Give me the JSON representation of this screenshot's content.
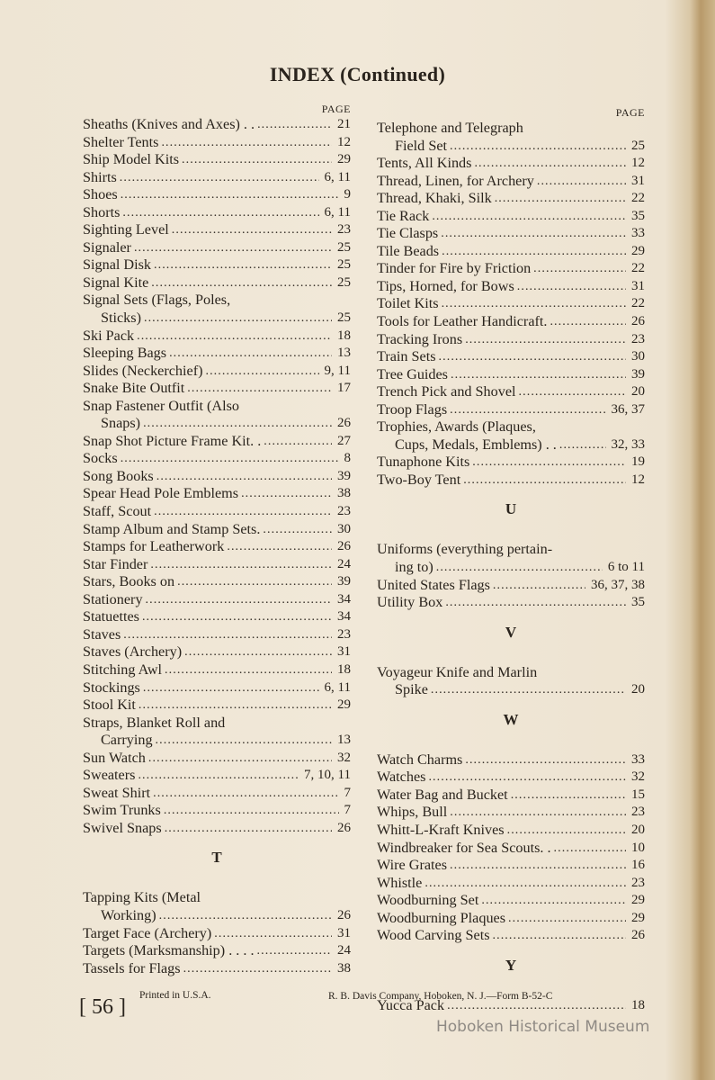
{
  "title": "INDEX (Continued)",
  "page_header": "PAGE",
  "left": [
    {
      "type": "entry",
      "lines": [
        "Sheaths (Knives and Axes) . ."
      ],
      "page": "21"
    },
    {
      "type": "entry",
      "lines": [
        "Shelter Tents"
      ],
      "page": "12"
    },
    {
      "type": "entry",
      "lines": [
        "Ship Model Kits"
      ],
      "page": "29"
    },
    {
      "type": "entry",
      "lines": [
        "Shirts"
      ],
      "page": "6, 11"
    },
    {
      "type": "entry",
      "lines": [
        "Shoes"
      ],
      "page": "9"
    },
    {
      "type": "entry",
      "lines": [
        "Shorts"
      ],
      "page": "6, 11"
    },
    {
      "type": "entry",
      "lines": [
        "Sighting Level"
      ],
      "page": "23"
    },
    {
      "type": "entry",
      "lines": [
        "Signaler"
      ],
      "page": "25"
    },
    {
      "type": "entry",
      "lines": [
        "Signal Disk"
      ],
      "page": "25"
    },
    {
      "type": "entry",
      "lines": [
        "Signal Kite"
      ],
      "page": "25"
    },
    {
      "type": "entry",
      "lines": [
        "Signal Sets (Flags, Poles,",
        "Sticks)"
      ],
      "page": "25"
    },
    {
      "type": "entry",
      "lines": [
        "Ski Pack"
      ],
      "page": "18"
    },
    {
      "type": "entry",
      "lines": [
        "Sleeping Bags"
      ],
      "page": "13"
    },
    {
      "type": "entry",
      "lines": [
        "Slides (Neckerchief)"
      ],
      "page": "9, 11"
    },
    {
      "type": "entry",
      "lines": [
        "Snake Bite Outfit"
      ],
      "page": "17"
    },
    {
      "type": "entry",
      "lines": [
        "Snap Fastener Outfit (Also",
        "Snaps)"
      ],
      "page": "26"
    },
    {
      "type": "entry",
      "lines": [
        "Snap Shot Picture Frame Kit. ."
      ],
      "page": "27"
    },
    {
      "type": "entry",
      "lines": [
        "Socks"
      ],
      "page": "8"
    },
    {
      "type": "entry",
      "lines": [
        "Song Books"
      ],
      "page": "39"
    },
    {
      "type": "entry",
      "lines": [
        "Spear Head Pole Emblems"
      ],
      "page": "38"
    },
    {
      "type": "entry",
      "lines": [
        "Staff, Scout"
      ],
      "page": "23"
    },
    {
      "type": "entry",
      "lines": [
        "Stamp Album and Stamp Sets."
      ],
      "page": "30"
    },
    {
      "type": "entry",
      "lines": [
        "Stamps for Leatherwork"
      ],
      "page": "26"
    },
    {
      "type": "entry",
      "lines": [
        "Star Finder"
      ],
      "page": "24"
    },
    {
      "type": "entry",
      "lines": [
        "Stars, Books on"
      ],
      "page": "39"
    },
    {
      "type": "entry",
      "lines": [
        "Stationery"
      ],
      "page": "34"
    },
    {
      "type": "entry",
      "lines": [
        "Statuettes"
      ],
      "page": "34"
    },
    {
      "type": "entry",
      "lines": [
        "Staves"
      ],
      "page": "23"
    },
    {
      "type": "entry",
      "lines": [
        "Staves (Archery)"
      ],
      "page": "31"
    },
    {
      "type": "entry",
      "lines": [
        "Stitching Awl"
      ],
      "page": "18"
    },
    {
      "type": "entry",
      "lines": [
        "Stockings"
      ],
      "page": "6, 11"
    },
    {
      "type": "entry",
      "lines": [
        "Stool Kit"
      ],
      "page": "29"
    },
    {
      "type": "entry",
      "lines": [
        "Straps, Blanket Roll and",
        "Carrying"
      ],
      "page": "13"
    },
    {
      "type": "entry",
      "lines": [
        "Sun Watch"
      ],
      "page": "32"
    },
    {
      "type": "entry",
      "lines": [
        "Sweaters"
      ],
      "page": "7, 10, 11"
    },
    {
      "type": "entry",
      "lines": [
        "Sweat Shirt"
      ],
      "page": "7"
    },
    {
      "type": "entry",
      "lines": [
        "Swim Trunks"
      ],
      "page": "7"
    },
    {
      "type": "entry",
      "lines": [
        "Swivel Snaps"
      ],
      "page": "26"
    },
    {
      "type": "section",
      "letter": "T"
    },
    {
      "type": "entry",
      "lines": [
        "Tapping Kits (Metal",
        "Working)"
      ],
      "page": "26"
    },
    {
      "type": "entry",
      "lines": [
        "Target Face (Archery)"
      ],
      "page": "31"
    },
    {
      "type": "entry",
      "lines": [
        "Targets (Marksmanship) . . . ."
      ],
      "page": "24"
    },
    {
      "type": "entry",
      "lines": [
        "Tassels for Flags"
      ],
      "page": "38"
    }
  ],
  "right": [
    {
      "type": "entry",
      "lines": [
        "Telephone and Telegraph",
        "Field Set"
      ],
      "page": "25"
    },
    {
      "type": "entry",
      "lines": [
        "Tents, All Kinds"
      ],
      "page": "12"
    },
    {
      "type": "entry",
      "lines": [
        "Thread, Linen, for Archery"
      ],
      "page": "31"
    },
    {
      "type": "entry",
      "lines": [
        "Thread, Khaki, Silk"
      ],
      "page": "22"
    },
    {
      "type": "entry",
      "lines": [
        "Tie Rack"
      ],
      "page": "35"
    },
    {
      "type": "entry",
      "lines": [
        "Tie Clasps"
      ],
      "page": "33"
    },
    {
      "type": "entry",
      "lines": [
        "Tile Beads"
      ],
      "page": "29"
    },
    {
      "type": "entry",
      "lines": [
        "Tinder for Fire by Friction"
      ],
      "page": "22"
    },
    {
      "type": "entry",
      "lines": [
        "Tips, Horned, for Bows"
      ],
      "page": "31"
    },
    {
      "type": "entry",
      "lines": [
        "Toilet Kits"
      ],
      "page": "22"
    },
    {
      "type": "entry",
      "lines": [
        "Tools for Leather Handicraft."
      ],
      "page": "26"
    },
    {
      "type": "entry",
      "lines": [
        "Tracking Irons"
      ],
      "page": "23"
    },
    {
      "type": "entry",
      "lines": [
        "Train Sets"
      ],
      "page": "30"
    },
    {
      "type": "entry",
      "lines": [
        "Tree Guides"
      ],
      "page": "39"
    },
    {
      "type": "entry",
      "lines": [
        "Trench Pick and Shovel"
      ],
      "page": "20"
    },
    {
      "type": "entry",
      "lines": [
        "Troop Flags"
      ],
      "page": "36, 37"
    },
    {
      "type": "entry",
      "lines": [
        "Trophies, Awards (Plaques,",
        "Cups, Medals, Emblems) . ."
      ],
      "page": "32, 33"
    },
    {
      "type": "entry",
      "lines": [
        "Tunaphone Kits"
      ],
      "page": "19"
    },
    {
      "type": "entry",
      "lines": [
        "Two-Boy Tent"
      ],
      "page": "12"
    },
    {
      "type": "section",
      "letter": "U"
    },
    {
      "type": "entry",
      "lines": [
        "Uniforms (everything pertain-",
        "ing to)"
      ],
      "page": "6 to 11"
    },
    {
      "type": "entry",
      "lines": [
        "United States Flags"
      ],
      "page": "36, 37, 38"
    },
    {
      "type": "entry",
      "lines": [
        "Utility Box"
      ],
      "page": "35"
    },
    {
      "type": "section",
      "letter": "V"
    },
    {
      "type": "entry",
      "lines": [
        "Voyageur Knife and Marlin",
        "Spike"
      ],
      "page": "20"
    },
    {
      "type": "section",
      "letter": "W"
    },
    {
      "type": "entry",
      "lines": [
        "Watch Charms"
      ],
      "page": "33"
    },
    {
      "type": "entry",
      "lines": [
        "Watches"
      ],
      "page": "32"
    },
    {
      "type": "entry",
      "lines": [
        "Water Bag and Bucket"
      ],
      "page": "15"
    },
    {
      "type": "entry",
      "lines": [
        "Whips, Bull"
      ],
      "page": "23"
    },
    {
      "type": "entry",
      "lines": [
        "Whitt-L-Kraft Knives"
      ],
      "page": "20"
    },
    {
      "type": "entry",
      "lines": [
        "Windbreaker for Sea Scouts. ."
      ],
      "page": "10"
    },
    {
      "type": "entry",
      "lines": [
        "Wire Grates"
      ],
      "page": "16"
    },
    {
      "type": "entry",
      "lines": [
        "Whistle"
      ],
      "page": "23"
    },
    {
      "type": "entry",
      "lines": [
        "Woodburning Set"
      ],
      "page": "29"
    },
    {
      "type": "entry",
      "lines": [
        "Woodburning Plaques"
      ],
      "page": "29"
    },
    {
      "type": "entry",
      "lines": [
        "Wood Carving Sets"
      ],
      "page": "26"
    },
    {
      "type": "section",
      "letter": "Y"
    },
    {
      "type": "entry",
      "lines": [
        "Yucca Pack"
      ],
      "page": "18"
    }
  ],
  "footer": {
    "page_number": "[ 56 ]",
    "printed": "Printed in U.S.A.",
    "company": "R. B. Davis Company, Hoboken, N. J.—Form B-52-C"
  },
  "watermark": "Hoboken Historical Museum"
}
